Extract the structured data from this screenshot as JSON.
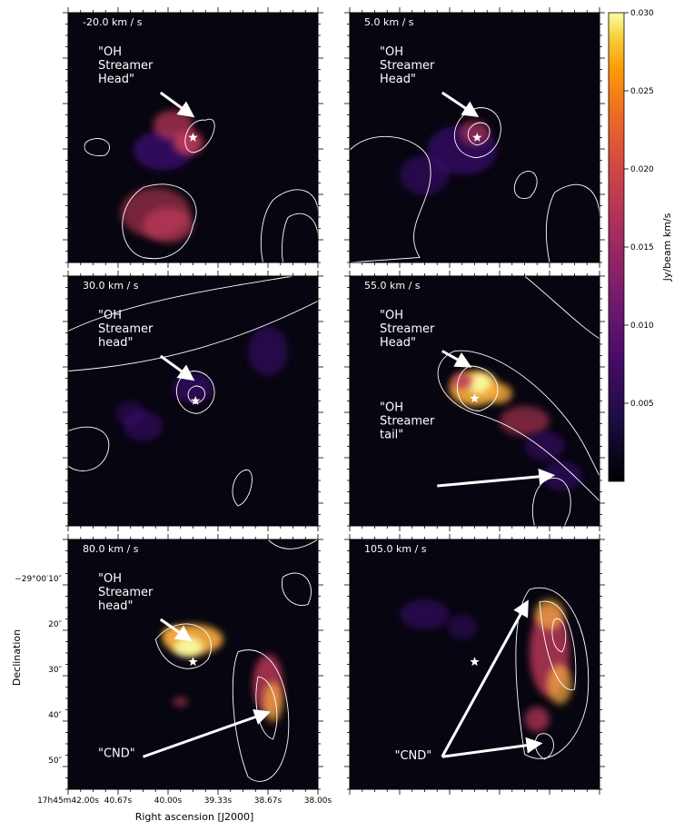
{
  "chart_data": {
    "type": "heatmap",
    "colorscale": "inferno",
    "colorbar": {
      "label": "Jy/beam km/s",
      "min": 0.0,
      "max": 0.03,
      "ticks": [
        "0.005",
        "0.010",
        "0.015",
        "0.020",
        "0.025",
        "0.030"
      ],
      "tick_values": [
        0.005,
        0.01,
        0.015,
        0.02,
        0.025,
        0.03
      ]
    },
    "xlabel": "Right ascension [J2000]",
    "ylabel": "Declination",
    "x_ticks": [
      "17h45m42.00s",
      "40.67s",
      "40.00s",
      "39.33s",
      "38.67s",
      "38.00s"
    ],
    "y_ticks": [
      "−29°00′10″",
      "20″",
      "30″",
      "40″",
      "50″"
    ],
    "star_marker": "Sgr A*",
    "panels": [
      {
        "velocity_label": "-20.0 km / s",
        "annotations": [
          "\"OH",
          "Streamer",
          "Head\""
        ]
      },
      {
        "velocity_label": "5.0 km / s",
        "annotations": [
          "\"OH",
          "Streamer",
          "Head\""
        ]
      },
      {
        "velocity_label": "30.0 km / s",
        "annotations": [
          "\"OH",
          "Streamer",
          "head\""
        ]
      },
      {
        "velocity_label": "55.0 km / s",
        "annotations": [
          "\"OH",
          "Streamer",
          "Head\"",
          "\"OH",
          "Streamer",
          "tail\""
        ]
      },
      {
        "velocity_label": "80.0 km / s",
        "annotations": [
          "\"OH",
          "Streamer",
          "head\"",
          "\"CND\""
        ]
      },
      {
        "velocity_label": "105.0 km / s",
        "annotations": [
          "\"CND\""
        ]
      }
    ]
  },
  "colors": {
    "panel_bg": "#07050f",
    "emission_low": "#3b0f70",
    "emission_mid": "#c03a5a",
    "emission_high": "#fcb040",
    "emission_peak": "#fcffa4",
    "contour": "#ffffff"
  }
}
